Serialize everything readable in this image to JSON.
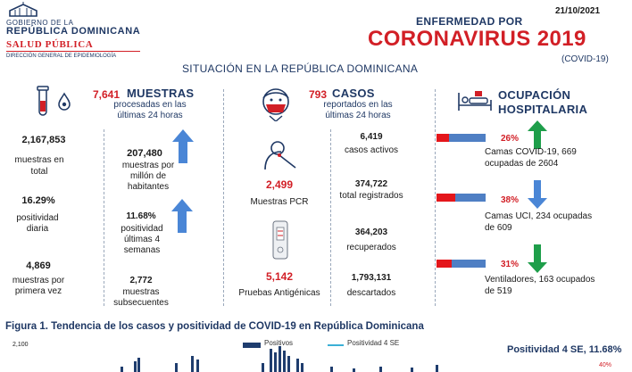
{
  "header": {
    "gov_line1": "GOBIERNO DE LA",
    "gov_line2": "REPÚBLICA DOMINICANA",
    "ministry": "SALUD PÚBLICA",
    "directorate": "DIRECCIÓN GENERAL DE EPIDEMIOLOGÍA",
    "date": "21/10/2021",
    "disease_prefix": "ENFERMEDAD POR",
    "disease_name": "CORONAVIRUS 2019",
    "disease_code": "(COVID-19)",
    "situation_title": "SITUACIÓN EN LA REPÚBLICA DOMINICANA"
  },
  "samples": {
    "count_24h": "7,641",
    "label": "MUESTRAS",
    "sub": "procesadas en las últimas 24 horas",
    "total_value": "2,167,853",
    "total_label": "muestras en total",
    "daily_pos_value": "16.29%",
    "daily_pos_label": "positividad diaria",
    "first_time_value": "4,869",
    "first_time_label": "muestras por primera vez",
    "per_million_value": "207,480",
    "per_million_label": "muestras por millón de habitantes",
    "pos_4w_value": "11.68%",
    "pos_4w_label": "positividad últimas 4 semanas",
    "subsequent_value": "2,772",
    "subsequent_label": "muestras subsecuentes"
  },
  "cases": {
    "count_24h": "793",
    "label": "CASOS",
    "sub": "reportados en las últimas 24 horas",
    "pcr_value": "2,499",
    "pcr_label": "Muestras PCR",
    "antigen_value": "5,142",
    "antigen_label": "Pruebas Antigénicas",
    "active_value": "6,419",
    "active_label": "casos activos",
    "total_value": "374,722",
    "total_label": "total registrados",
    "recovered_value": "364,203",
    "recovered_label": "recuperados",
    "discarded_value": "1,793,131",
    "discarded_label": "descartados"
  },
  "hospital": {
    "title_line1": "OCUPACIÓN",
    "title_line2": "HOSPITALARIA",
    "covid_beds_pct": "26%",
    "covid_beds_fraction": 0.26,
    "covid_beds_text": "Camas COVID-19,  669 ocupadas de 2604",
    "icu_pct": "38%",
    "icu_fraction": 0.38,
    "icu_text": "Camas UCI,  234 ocupadas de 609",
    "vent_pct": "31%",
    "vent_fraction": 0.31,
    "vent_text": "Ventiladores, 163 ocupados de 519"
  },
  "figure": {
    "title": "Figura 1. Tendencia de los casos y positividad de COVID-19 en República Dominicana",
    "y_max_label": "2,100",
    "legend_positivos": "Positivos",
    "legend_positividad": "Positividad 4 SE",
    "positividad_note": "Positividad 4 SE, 11.68%",
    "right_axis_label": "40%"
  },
  "colors": {
    "navy": "#1f3864",
    "red": "#d21f26",
    "green": "#1e9e4a",
    "blue_arrow": "#4a86d6",
    "bar_blue": "#4f7fc4",
    "bar_red": "#e4161b"
  }
}
